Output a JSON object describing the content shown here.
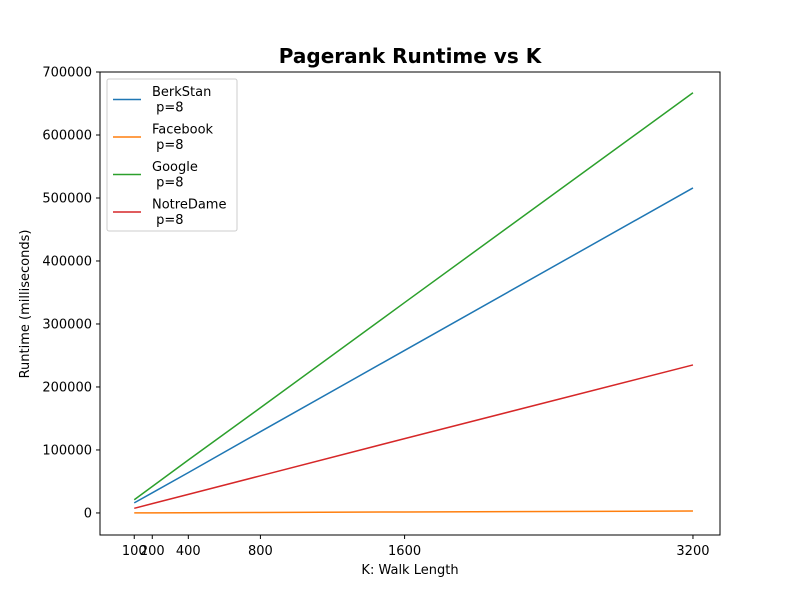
{
  "chart_data": {
    "type": "line",
    "title": "Pagerank Runtime vs K",
    "xlabel": "K: Walk Length",
    "ylabel": "Runtime (milliseconds)",
    "x": [
      100,
      200,
      400,
      800,
      1600,
      3200
    ],
    "xticks": [
      100,
      200,
      400,
      800,
      1600,
      3200
    ],
    "xlim": [
      -90,
      3350
    ],
    "yticks": [
      0,
      100000,
      200000,
      300000,
      400000,
      500000,
      600000,
      700000
    ],
    "ylim": [
      -35000,
      700000
    ],
    "grid": false,
    "legend_position": "upper-left",
    "series": [
      {
        "name": "BerkStan\n p=8",
        "color": "#1f77b4",
        "values": [
          16000,
          32000,
          64000,
          129000,
          258000,
          516000
        ]
      },
      {
        "name": "Facebook\n p=8",
        "color": "#ff7f0e",
        "values": [
          100,
          200,
          400,
          800,
          1600,
          3000
        ]
      },
      {
        "name": "Google\n p=8",
        "color": "#2ca02c",
        "values": [
          21000,
          42000,
          84000,
          167000,
          334000,
          667000
        ]
      },
      {
        "name": "NotreDame\n p=8",
        "color": "#d62728",
        "values": [
          7400,
          14800,
          29500,
          59000,
          118000,
          235000
        ]
      }
    ]
  }
}
